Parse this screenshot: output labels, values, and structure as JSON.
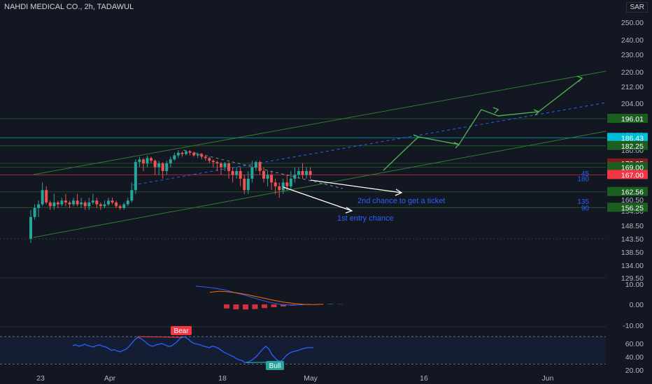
{
  "header": {
    "title": "NAHDI MEDICAL CO., 2h, TADAWUL",
    "currency": "SAR"
  },
  "chart_data": {
    "type": "candlestick",
    "price_axis": {
      "ticks": [
        "250.00",
        "240.00",
        "230.00",
        "220.00",
        "212.00",
        "204.00",
        "196.00",
        "188.00",
        "180.00",
        "174.00",
        "160.50",
        "154.50",
        "148.50",
        "143.50",
        "138.50",
        "134.00",
        "129.50"
      ],
      "badges": [
        {
          "label": "196.01",
          "price": 196.01,
          "color": "#1b5e20"
        },
        {
          "label": "186.43",
          "price": 186.43,
          "color": "#00bcd4"
        },
        {
          "label": "182.25",
          "price": 182.25,
          "color": "#1b5e20"
        },
        {
          "label": "170.05",
          "price": 170.05,
          "color": "#7f1d1d"
        },
        {
          "label": "169.00",
          "price": 169.0,
          "color": "#1b5e20"
        },
        {
          "label": "167.00",
          "price": 167.0,
          "color": "#f23645"
        },
        {
          "label": "162.56",
          "price": 162.56,
          "color": "#1b5e20"
        },
        {
          "label": "156.25",
          "price": 156.25,
          "color": "#1b5e20"
        }
      ]
    },
    "candles": [
      [
        143.5,
        152,
        142,
        155
      ],
      [
        152,
        156,
        151,
        158
      ],
      [
        156,
        158,
        152,
        160
      ],
      [
        158,
        163,
        157,
        165
      ],
      [
        163,
        159,
        158,
        164
      ],
      [
        159,
        157,
        155,
        160
      ],
      [
        157,
        159,
        155,
        162
      ],
      [
        159,
        158,
        156,
        160
      ],
      [
        158,
        160,
        157,
        161
      ],
      [
        160,
        159,
        157,
        162
      ],
      [
        159,
        158,
        156,
        160
      ],
      [
        158,
        160,
        157,
        161
      ],
      [
        160,
        158,
        157,
        162
      ],
      [
        158,
        159,
        156,
        161
      ],
      [
        159,
        157,
        155,
        160
      ],
      [
        157,
        159,
        155,
        161
      ],
      [
        159,
        160,
        158,
        162
      ],
      [
        160,
        158,
        156,
        161
      ],
      [
        158,
        157,
        155,
        159
      ],
      [
        157,
        158,
        156,
        160
      ],
      [
        158,
        160,
        157,
        161
      ],
      [
        160,
        159,
        158,
        161
      ],
      [
        159,
        157,
        156,
        160
      ],
      [
        157,
        156,
        155,
        158
      ],
      [
        156,
        158,
        155,
        159
      ],
      [
        158,
        160,
        157,
        161
      ],
      [
        160,
        163,
        159,
        165
      ],
      [
        163,
        171,
        162,
        173
      ],
      [
        171,
        173,
        169,
        175
      ],
      [
        173,
        170,
        168,
        174
      ],
      [
        170,
        174,
        169,
        176
      ],
      [
        174,
        172,
        170,
        175
      ],
      [
        172,
        169,
        167,
        173
      ],
      [
        169,
        170,
        167,
        172
      ],
      [
        170,
        168,
        166,
        171
      ],
      [
        168,
        170,
        167,
        172
      ],
      [
        170,
        173,
        169,
        175
      ],
      [
        173,
        176,
        172,
        178
      ],
      [
        176,
        178,
        174,
        180
      ],
      [
        178,
        177,
        175,
        179
      ],
      [
        177,
        179,
        176,
        180
      ],
      [
        179,
        178,
        176,
        180
      ],
      [
        178,
        176,
        175,
        179
      ],
      [
        176,
        177,
        174,
        178
      ],
      [
        177,
        175,
        173,
        178
      ],
      [
        175,
        174,
        172,
        176
      ],
      [
        174,
        172,
        170,
        175
      ],
      [
        172,
        171,
        169,
        173
      ],
      [
        171,
        170,
        168,
        172
      ],
      [
        170,
        169,
        167,
        171
      ],
      [
        169,
        170,
        168,
        171
      ],
      [
        170,
        168,
        166,
        171
      ],
      [
        168,
        167,
        165,
        169
      ],
      [
        167,
        168,
        166,
        169
      ],
      [
        168,
        166,
        164,
        169
      ],
      [
        166,
        163,
        162,
        167
      ],
      [
        163,
        166,
        162,
        168
      ],
      [
        166,
        169,
        165,
        172
      ],
      [
        169,
        171,
        168,
        172
      ],
      [
        171,
        168,
        167,
        172
      ],
      [
        168,
        166,
        165,
        169
      ],
      [
        166,
        167,
        164,
        168
      ],
      [
        167,
        165,
        163,
        168
      ],
      [
        165,
        164,
        162,
        166
      ],
      [
        164,
        163,
        161,
        165
      ],
      [
        163,
        165,
        162,
        166
      ],
      [
        165,
        164,
        163,
        167
      ],
      [
        164,
        166,
        163,
        168
      ],
      [
        166,
        167,
        165,
        169
      ],
      [
        167,
        168,
        166,
        169
      ],
      [
        168,
        167,
        166,
        170
      ],
      [
        167,
        168,
        166,
        169
      ],
      [
        168,
        167,
        166,
        169
      ]
    ],
    "annotations": [
      "2nd chance to get a ticket",
      "1st entry chance"
    ],
    "level_labels": [
      {
        "text": "90",
        "price": 156.25
      },
      {
        "text": "135",
        "price": 159.8
      },
      {
        "text": "180",
        "price": 166.1
      },
      {
        "text": "45",
        "price": 167.4
      }
    ],
    "projection": [
      [
        176,
        167
      ],
      [
        194,
        178
      ],
      [
        202,
        175
      ],
      [
        209,
        190
      ],
      [
        218,
        181
      ],
      [
        228,
        197
      ],
      [
        237,
        215
      ]
    ],
    "macd": {
      "ticks": [
        "10.00",
        "0.00",
        "-10.00"
      ],
      "line1": [
        9,
        8.6,
        8,
        7.2,
        6,
        4.8,
        3.4,
        2,
        0.8,
        0,
        -0.3,
        -0.2,
        0.1
      ],
      "line2": [
        6,
        6.5,
        6.2,
        5.6,
        4.8,
        3.8,
        2.8,
        1.8,
        1,
        0.4,
        0,
        -0.1,
        0.1
      ],
      "hist": [
        -2,
        -2.4,
        -2.5,
        -2.3,
        -1.8,
        -1.4,
        -1,
        -0.6,
        -0.3,
        -0.1,
        0.1,
        0.2,
        0.1
      ]
    },
    "rsi": {
      "ticks": [
        "60.00",
        "40.00",
        "20.00"
      ],
      "values": [
        57,
        58,
        56,
        57,
        59,
        57,
        56,
        55,
        57,
        58,
        56,
        55,
        53,
        50,
        51,
        49,
        48,
        50,
        52,
        56,
        61,
        66,
        69,
        67,
        64,
        60,
        57,
        56,
        58,
        59,
        60,
        58,
        56,
        56,
        59,
        62,
        67,
        70,
        69,
        66,
        62,
        60,
        59,
        58,
        56,
        55,
        54,
        56,
        55,
        53,
        50,
        47,
        45,
        43,
        41,
        38,
        36,
        35,
        32,
        33,
        35,
        38,
        42,
        47,
        52,
        56,
        52,
        44,
        39,
        35,
        34,
        38,
        43,
        46,
        48,
        49,
        50,
        52,
        53,
        54,
        54,
        54
      ],
      "labels": [
        "Bear",
        "Bull"
      ]
    },
    "x_labels": [
      "23",
      "Apr",
      "18",
      "May",
      "16",
      "Jun"
    ]
  }
}
